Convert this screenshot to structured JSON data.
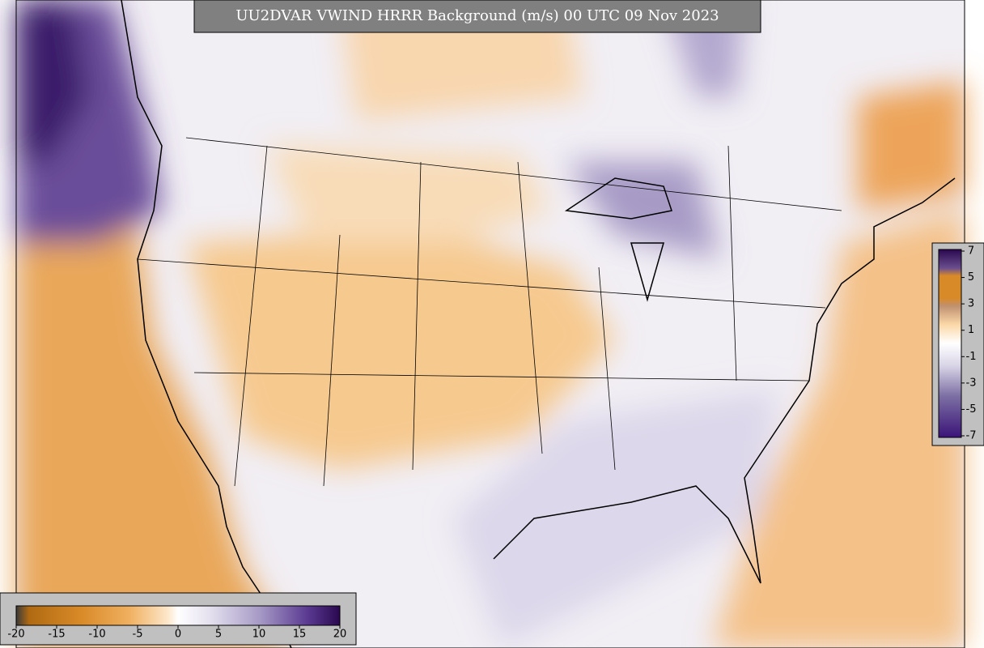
{
  "title": "UU2DVAR VWIND HRRR Background (m/s) 00 UTC 09 Nov 2023",
  "colorbar_bottom": {
    "ticks": [
      -20,
      -15,
      -10,
      -5,
      0,
      5,
      10,
      15,
      20
    ]
  },
  "colorbar_right": {
    "ticks": [
      7,
      5,
      3,
      1,
      -1,
      -3,
      -5,
      -7
    ]
  }
}
